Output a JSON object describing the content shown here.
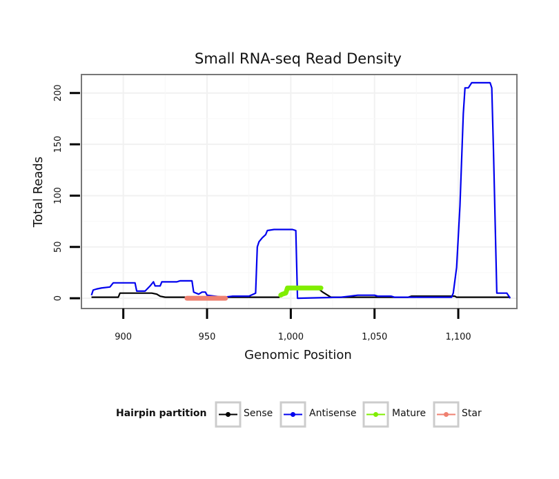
{
  "chart_data": {
    "type": "line",
    "title": "Small RNA-seq Read Density",
    "xlabel": "Genomic Position",
    "ylabel": "Total Reads",
    "xlim": [
      875,
      1135
    ],
    "ylim": [
      -10,
      218
    ],
    "xticks": [
      900,
      950,
      1000,
      1050,
      1100
    ],
    "xtick_labels": [
      "900",
      "950",
      "1,000",
      "1,050",
      "1,100"
    ],
    "yticks": [
      0,
      50,
      100,
      150,
      200
    ],
    "ytick_labels": [
      "0",
      "50",
      "100",
      "150",
      "200"
    ],
    "grid": true,
    "legend": {
      "title": "Hairpin partition",
      "placement": "bottom"
    },
    "series": [
      {
        "name": "Sense",
        "color": "#000000",
        "marker": true,
        "line_width": "thin",
        "points": [
          [
            881,
            1
          ],
          [
            897,
            1
          ],
          [
            898,
            5
          ],
          [
            917,
            5
          ],
          [
            920,
            4
          ],
          [
            922,
            2
          ],
          [
            925,
            1
          ],
          [
            960,
            1
          ],
          [
            993,
            1
          ],
          [
            994,
            3
          ],
          [
            996,
            4
          ],
          [
            997,
            8
          ],
          [
            1000,
            10
          ],
          [
            1016,
            10
          ],
          [
            1019,
            6
          ],
          [
            1022,
            3
          ],
          [
            1024,
            1
          ],
          [
            1070,
            1
          ],
          [
            1072,
            2
          ],
          [
            1098,
            2
          ],
          [
            1099,
            1
          ],
          [
            1131,
            1
          ]
        ]
      },
      {
        "name": "Antisense",
        "color": "#0000ee",
        "marker": true,
        "line_width": "thin",
        "points": [
          [
            881,
            3
          ],
          [
            882,
            8
          ],
          [
            884,
            9
          ],
          [
            887,
            10
          ],
          [
            892,
            11
          ],
          [
            894,
            15
          ],
          [
            907,
            15
          ],
          [
            908,
            7
          ],
          [
            913,
            7
          ],
          [
            916,
            12
          ],
          [
            918,
            16
          ],
          [
            919,
            12
          ],
          [
            922,
            12
          ],
          [
            923,
            16
          ],
          [
            932,
            16
          ],
          [
            934,
            17
          ],
          [
            941,
            17
          ],
          [
            942,
            6
          ],
          [
            945,
            4
          ],
          [
            947,
            6
          ],
          [
            949,
            6
          ],
          [
            950,
            3
          ],
          [
            955,
            2
          ],
          [
            960,
            1
          ],
          [
            965,
            2
          ],
          [
            975,
            2
          ],
          [
            979,
            5
          ],
          [
            980,
            50
          ],
          [
            981,
            55
          ],
          [
            983,
            59
          ],
          [
            985,
            62
          ],
          [
            986,
            66
          ],
          [
            990,
            67
          ],
          [
            1001,
            67
          ],
          [
            1003,
            66
          ],
          [
            1004,
            0
          ],
          [
            1030,
            1
          ],
          [
            1035,
            2
          ],
          [
            1040,
            3
          ],
          [
            1045,
            3
          ],
          [
            1050,
            3
          ],
          [
            1052,
            2
          ],
          [
            1060,
            2
          ],
          [
            1062,
            1
          ],
          [
            1075,
            1
          ],
          [
            1096,
            1
          ],
          [
            1097,
            5
          ],
          [
            1099,
            30
          ],
          [
            1101,
            90
          ],
          [
            1103,
            180
          ],
          [
            1104,
            205
          ],
          [
            1106,
            205
          ],
          [
            1108,
            210
          ],
          [
            1119,
            210
          ],
          [
            1120,
            205
          ],
          [
            1121,
            145
          ],
          [
            1123,
            5
          ],
          [
            1129,
            5
          ],
          [
            1131,
            0
          ]
        ]
      },
      {
        "name": "Mature",
        "color": "#80ee00",
        "marker": true,
        "line_width": "thick",
        "points": [
          [
            994,
            3
          ],
          [
            995,
            4
          ],
          [
            997,
            5
          ],
          [
            998,
            10
          ],
          [
            1000,
            10
          ],
          [
            1002,
            10
          ],
          [
            1004,
            10
          ],
          [
            1006,
            10
          ],
          [
            1008,
            10
          ],
          [
            1010,
            10
          ],
          [
            1012,
            10
          ],
          [
            1014,
            10
          ],
          [
            1016,
            10
          ],
          [
            1018,
            10
          ]
        ]
      },
      {
        "name": "Star",
        "color": "#ef8070",
        "marker": true,
        "line_width": "thick",
        "points": [
          [
            938,
            0
          ],
          [
            941,
            0
          ],
          [
            944,
            0
          ],
          [
            947,
            0
          ],
          [
            950,
            0
          ],
          [
            953,
            0
          ],
          [
            956,
            0
          ],
          [
            959,
            0
          ],
          [
            961,
            0
          ]
        ]
      }
    ]
  }
}
